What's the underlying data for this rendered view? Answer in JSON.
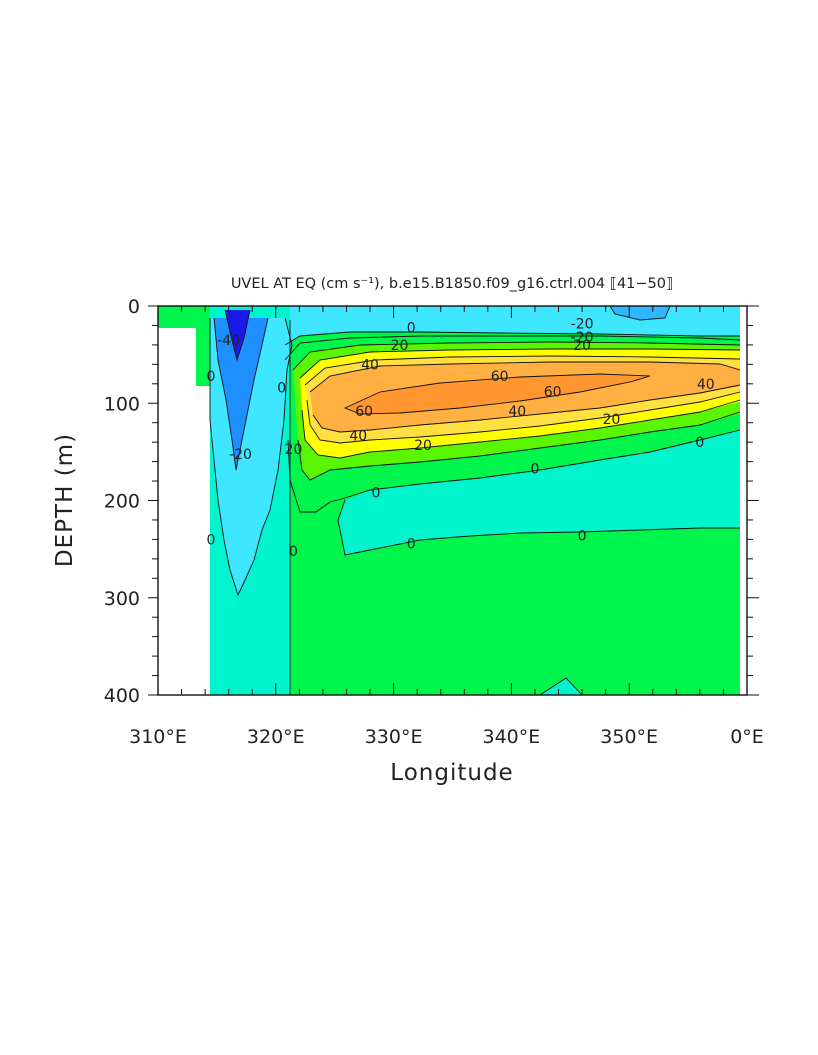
{
  "chart_data": {
    "type": "heatmap",
    "title": "UVEL AT EQ (cm s⁻¹), b.e15.B1850.f09_g16.ctrl.004 ⟦41−50⟧",
    "xlabel": "Longitude",
    "ylabel": "DEPTH (m)",
    "xlim": [
      310,
      360
    ],
    "ylim": [
      400,
      0
    ],
    "x_ticks": [
      "310°E",
      "320°E",
      "330°E",
      "340°E",
      "350°E",
      "0°E"
    ],
    "y_ticks": [
      "0",
      "100",
      "200",
      "300",
      "400"
    ],
    "contour_levels": [
      -40,
      -20,
      0,
      20,
      40,
      60
    ],
    "colors": {
      "lt_neg40": "#1a1ae6",
      "neg40_neg20": "#1e8fff",
      "neg20_0": "#3fe6ff",
      "zero_band": "#00f5cc",
      "pos_0_10": "#00f54d",
      "pos_10_20": "#5af500",
      "pos_20_30": "#ffff00",
      "pos_30_40": "#ffe040",
      "pos_40_60": "#ffb040",
      "pos_gt60": "#ff9630"
    },
    "contour_labels": [
      {
        "text": "0",
        "lon": 331.5,
        "depth": 22
      },
      {
        "text": "-20",
        "lon": 346,
        "depth": 18
      },
      {
        "text": "-20",
        "lon": 346,
        "depth": 32
      },
      {
        "text": "20",
        "lon": 330.5,
        "depth": 40
      },
      {
        "text": "20",
        "lon": 346,
        "depth": 40
      },
      {
        "text": "40",
        "lon": 328,
        "depth": 60
      },
      {
        "text": "60",
        "lon": 339,
        "depth": 72
      },
      {
        "text": "60",
        "lon": 343.5,
        "depth": 88
      },
      {
        "text": "40",
        "lon": 356.5,
        "depth": 80
      },
      {
        "text": "60",
        "lon": 327.5,
        "depth": 108
      },
      {
        "text": "40",
        "lon": 340.5,
        "depth": 108
      },
      {
        "text": "20",
        "lon": 348.5,
        "depth": 116
      },
      {
        "text": "40",
        "lon": 327,
        "depth": 133
      },
      {
        "text": "20",
        "lon": 332.5,
        "depth": 143
      },
      {
        "text": "0",
        "lon": 356,
        "depth": 140
      },
      {
        "text": "0",
        "lon": 342,
        "depth": 167
      },
      {
        "text": "0",
        "lon": 328.5,
        "depth": 192
      },
      {
        "text": "0",
        "lon": 331.5,
        "depth": 244
      },
      {
        "text": "0",
        "lon": 346,
        "depth": 236
      },
      {
        "text": "20",
        "lon": 321.5,
        "depth": 147
      },
      {
        "text": "0",
        "lon": 320.5,
        "depth": 84
      },
      {
        "text": "-20",
        "lon": 317,
        "depth": 152
      },
      {
        "text": "0",
        "lon": 314.5,
        "depth": 72
      },
      {
        "text": "0",
        "lon": 314.5,
        "depth": 240
      },
      {
        "text": "0",
        "lon": 321.5,
        "depth": 252
      },
      {
        "text": "-40",
        "lon": 316,
        "depth": 35
      }
    ]
  }
}
